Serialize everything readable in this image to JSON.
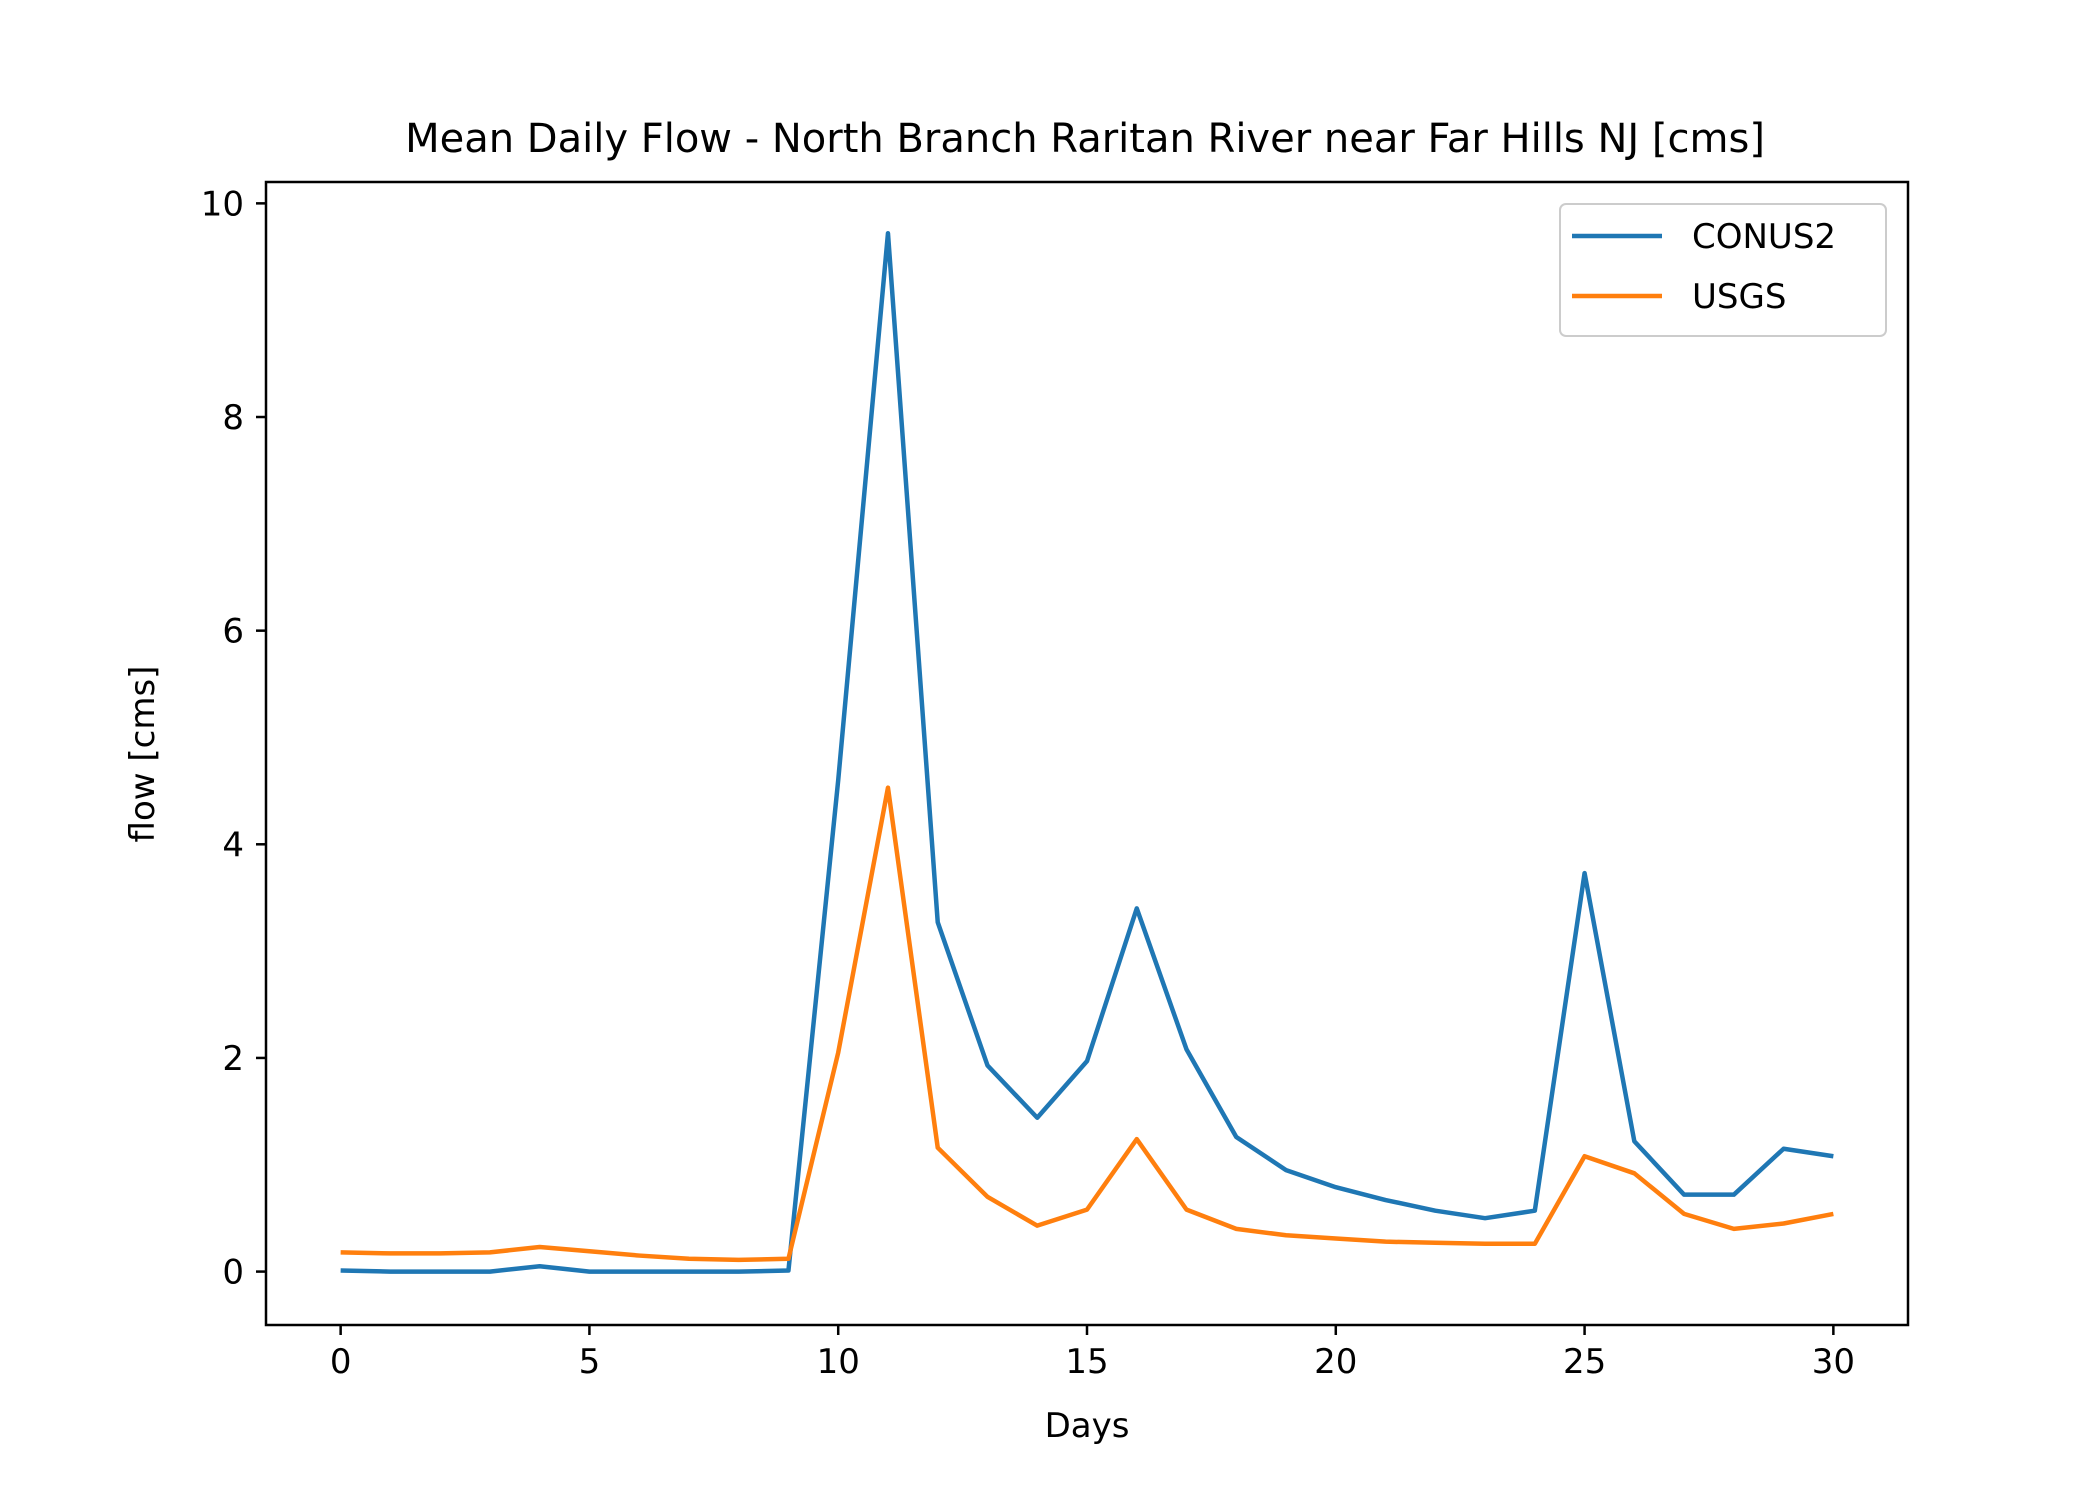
{
  "chart_data": {
    "type": "line",
    "title": "Mean Daily Flow - North Branch Raritan River near Far Hills NJ [cms]",
    "xlabel": "Days",
    "ylabel": "flow [cms]",
    "xlim": [
      -1.5,
      31.5
    ],
    "ylim": [
      -0.5,
      10.2
    ],
    "xticks": [
      0,
      5,
      10,
      15,
      20,
      25,
      30
    ],
    "yticks": [
      0,
      2,
      4,
      6,
      8,
      10
    ],
    "xtick_labels": [
      "0",
      "5",
      "10",
      "15",
      "20",
      "25",
      "30"
    ],
    "ytick_labels": [
      "0",
      "2",
      "4",
      "6",
      "8",
      "10"
    ],
    "grid": false,
    "legend_position": "top-right",
    "x": [
      0,
      1,
      2,
      3,
      4,
      5,
      6,
      7,
      8,
      9,
      10,
      11,
      12,
      13,
      14,
      15,
      16,
      17,
      18,
      19,
      20,
      21,
      22,
      23,
      24,
      25,
      26,
      27,
      28,
      29,
      30
    ],
    "series": [
      {
        "name": "CONUS2",
        "color": "#1f77b4",
        "values": [
          0.01,
          0.0,
          0.0,
          0.0,
          0.05,
          0.0,
          0.0,
          0.0,
          0.0,
          0.01,
          4.6,
          9.72,
          3.27,
          1.93,
          1.44,
          1.97,
          3.4,
          2.08,
          1.26,
          0.95,
          0.79,
          0.67,
          0.57,
          0.5,
          0.57,
          3.73,
          1.22,
          0.72,
          0.72,
          1.15,
          1.08
        ]
      },
      {
        "name": "USGS",
        "color": "#ff7f0e",
        "values": [
          0.18,
          0.17,
          0.17,
          0.18,
          0.23,
          0.19,
          0.15,
          0.12,
          0.11,
          0.12,
          2.05,
          4.53,
          1.16,
          0.7,
          0.43,
          0.58,
          1.24,
          0.58,
          0.4,
          0.34,
          0.31,
          0.28,
          0.27,
          0.26,
          0.26,
          1.08,
          0.92,
          0.54,
          0.4,
          0.45,
          0.54
        ]
      }
    ]
  }
}
